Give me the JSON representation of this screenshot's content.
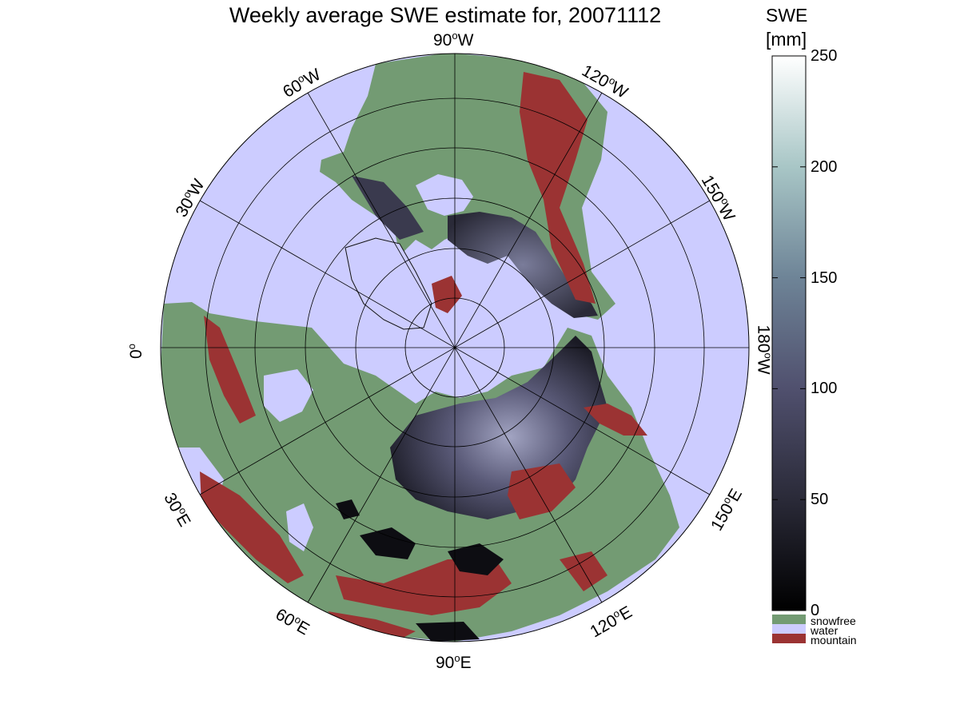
{
  "title": "Weekly average SWE estimate for, 20071112",
  "map": {
    "projection": "north polar stereographic",
    "longitude_labels": [
      {
        "deg": "90",
        "hemi": "W"
      },
      {
        "deg": "120",
        "hemi": "W"
      },
      {
        "deg": "150",
        "hemi": "W"
      },
      {
        "deg": "180",
        "hemi": "W"
      },
      {
        "deg": "150",
        "hemi": "E"
      },
      {
        "deg": "120",
        "hemi": "E"
      },
      {
        "deg": "90",
        "hemi": "E"
      },
      {
        "deg": "60",
        "hemi": "E"
      },
      {
        "deg": "30",
        "hemi": "E"
      },
      {
        "deg": "0",
        "hemi": ""
      },
      {
        "deg": "30",
        "hemi": "W"
      },
      {
        "deg": "60",
        "hemi": "W"
      }
    ],
    "colors": {
      "water": "#ccccff",
      "snowfree": "#739b73",
      "mountain": "#9b3333",
      "snow_low": "#0a0a0f",
      "snow_mid": "#4d4d6b",
      "snow_high": "#a2a4c2"
    }
  },
  "colorbar": {
    "title_line1": "SWE",
    "title_line2": "[mm]",
    "ticks": [
      "0",
      "50",
      "100",
      "150",
      "200",
      "250"
    ],
    "range": [
      0,
      250
    ],
    "legend": [
      {
        "label": "snowfree",
        "color": "#739b73"
      },
      {
        "label": "water",
        "color": "#ccccff"
      },
      {
        "label": "mountain",
        "color": "#9b3333"
      }
    ]
  }
}
